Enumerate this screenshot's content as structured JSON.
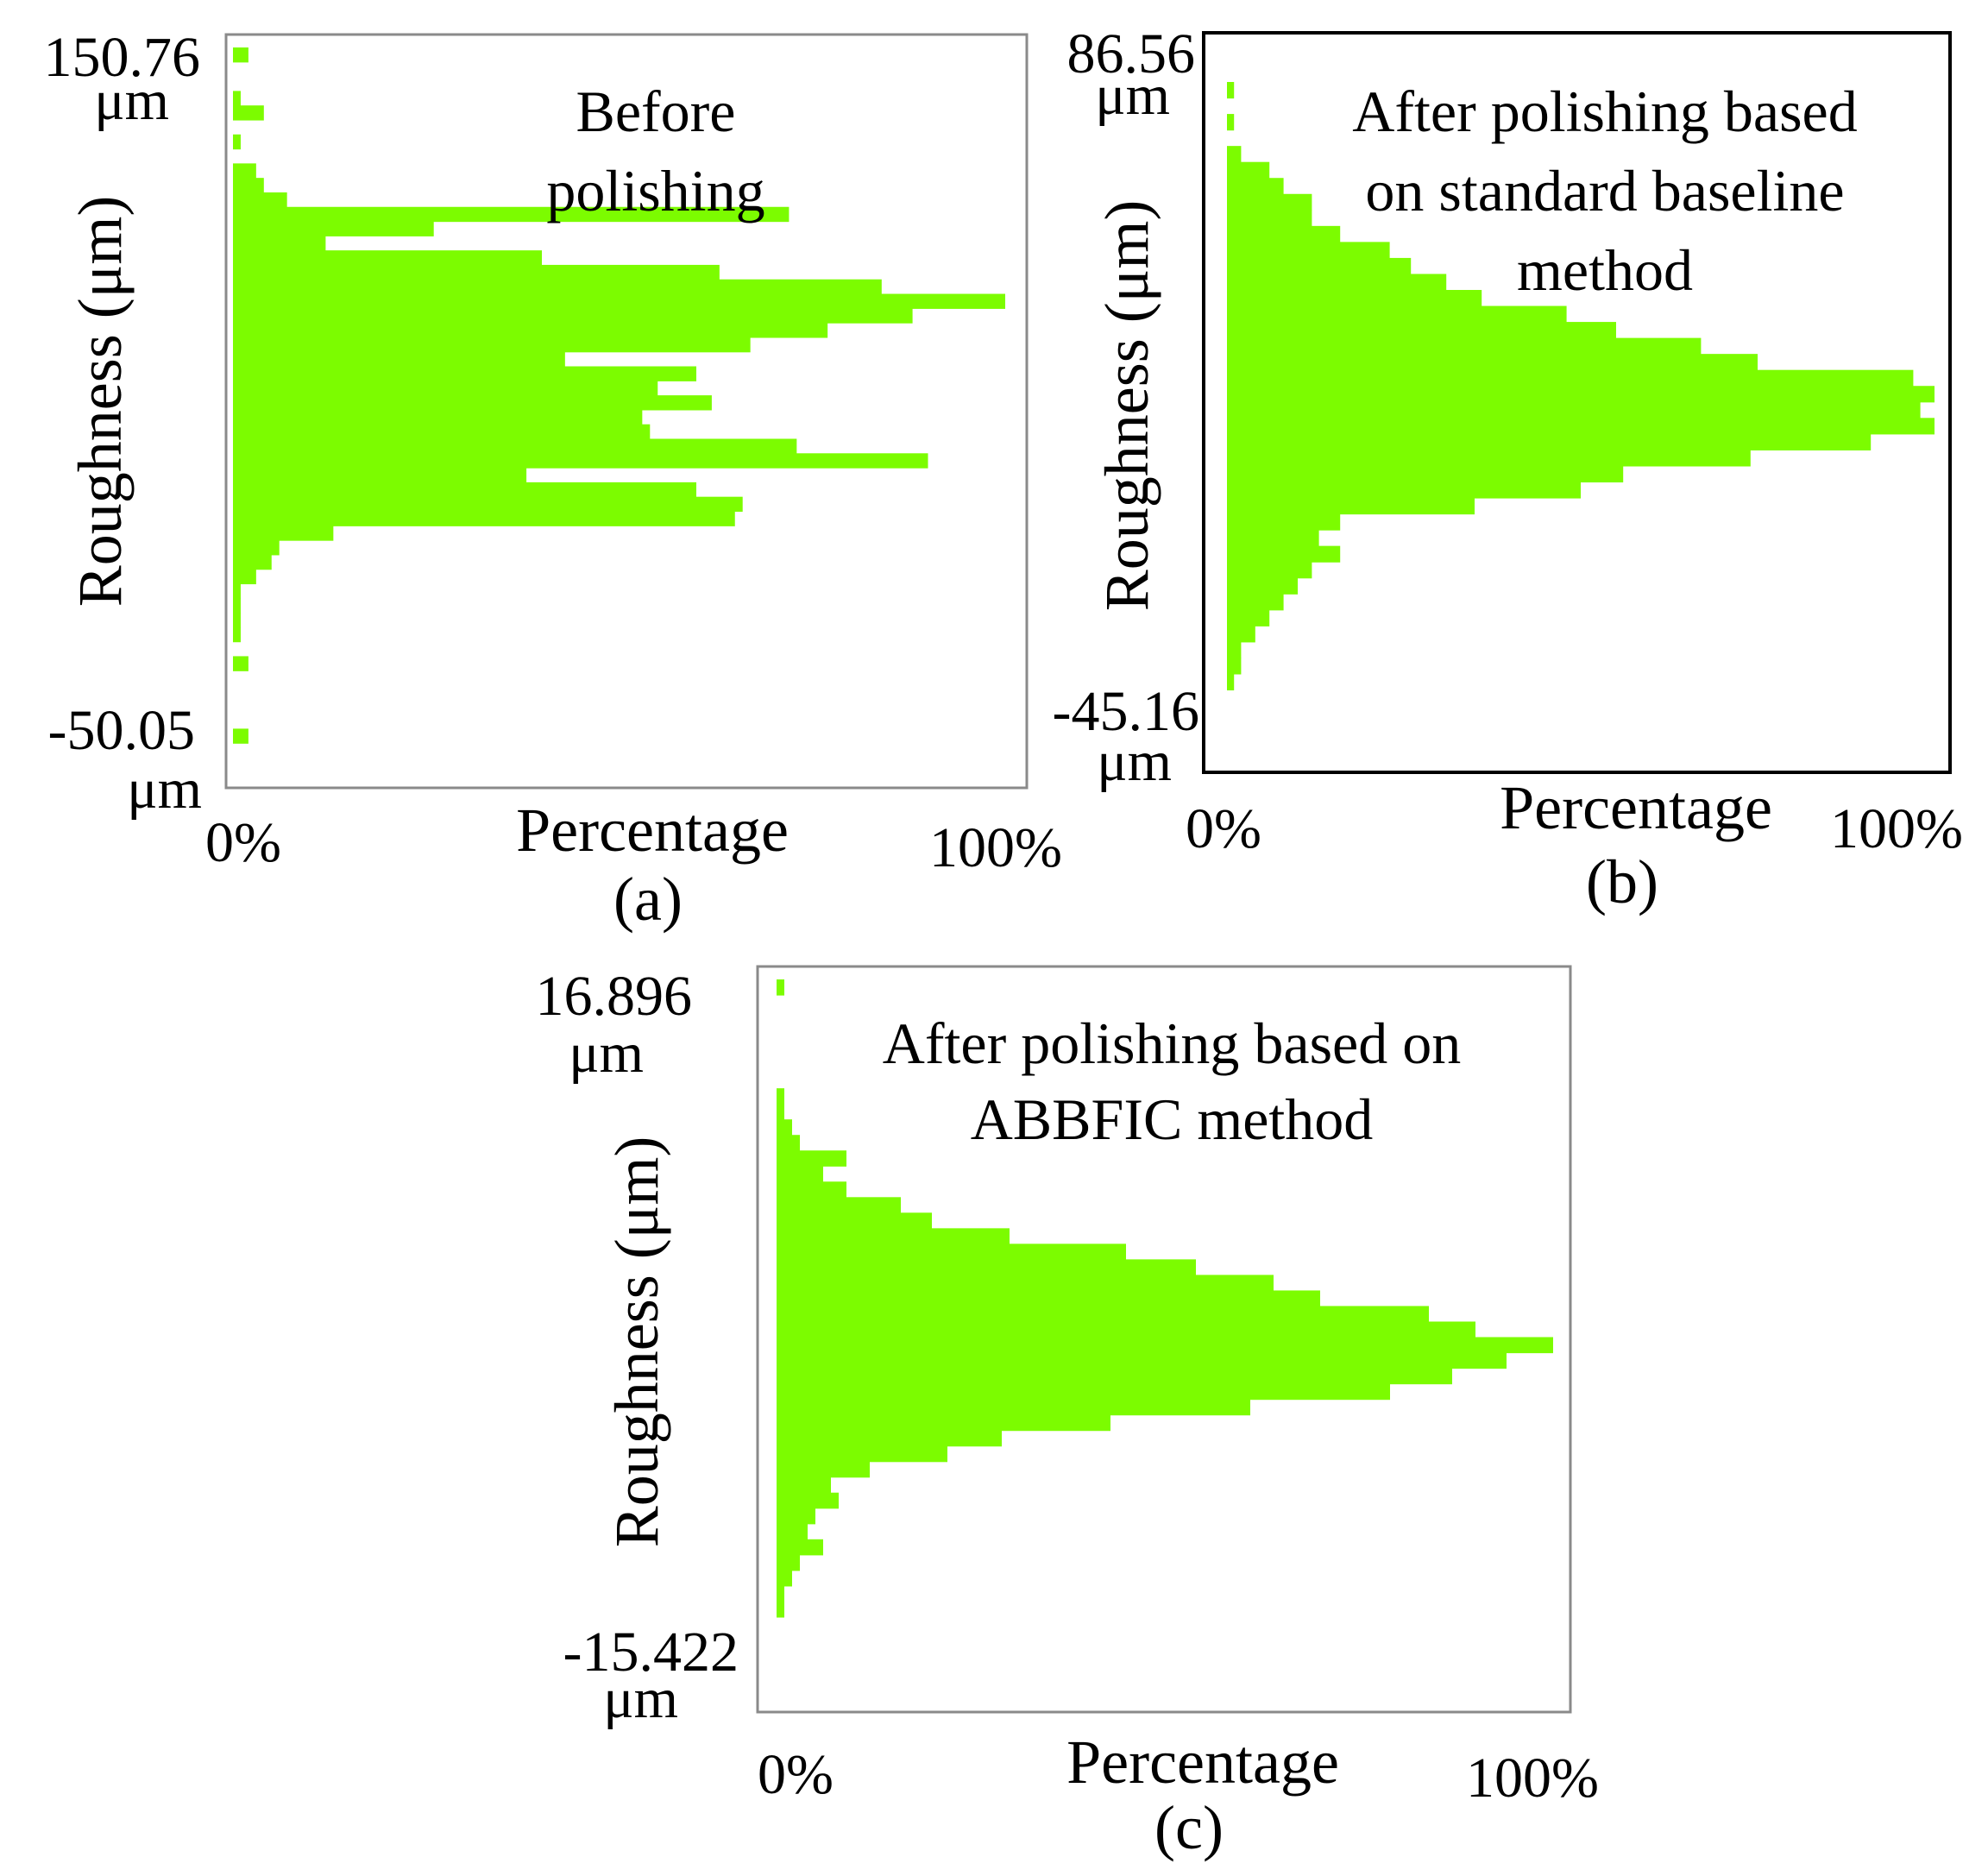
{
  "chart_data": [
    {
      "type": "bar",
      "orientation": "horizontal",
      "panel": "a",
      "caption": "(a)",
      "annotation": [
        "Before",
        "polishing"
      ],
      "ylabel": "Roughness (μm)",
      "xlabel": "Percentage",
      "y_top": [
        "150.76",
        "μm"
      ],
      "y_bottom": [
        "-50.05",
        "μm"
      ],
      "x_min": "0%",
      "x_max": "100%",
      "bar_color": "#7cfc00",
      "frame_color": "#8a8a8a",
      "values": [
        2,
        0,
        0,
        1,
        4,
        0,
        1,
        0,
        3,
        4,
        7,
        72,
        26,
        12,
        40,
        63,
        84,
        100,
        88,
        77,
        67,
        43,
        60,
        55,
        62,
        53,
        54,
        73,
        90,
        38,
        60,
        66,
        65,
        13,
        6,
        5,
        3,
        1,
        1,
        1,
        1,
        0,
        2,
        0,
        0,
        0,
        0,
        2,
        0
      ]
    },
    {
      "type": "bar",
      "orientation": "horizontal",
      "panel": "b",
      "caption": "(b)",
      "annotation": [
        "After polishing based",
        "on standard baseline",
        "method"
      ],
      "ylabel": "Roughness (μm)",
      "xlabel": "Percentage",
      "y_top": [
        "86.56",
        "μm"
      ],
      "y_bottom": [
        "-45.16",
        "μm"
      ],
      "x_min": "0%",
      "x_max": "100%",
      "bar_color": "#7cfc00",
      "frame_color": "#000000",
      "values": [
        1,
        0,
        1,
        0,
        2,
        6,
        8,
        12,
        12,
        16,
        23,
        26,
        31,
        36,
        48,
        55,
        67,
        75,
        97,
        100,
        98,
        100,
        91,
        74,
        56,
        50,
        35,
        16,
        13,
        16,
        12,
        10,
        8,
        6,
        4,
        2,
        2,
        1,
        0
      ]
    },
    {
      "type": "bar",
      "orientation": "horizontal",
      "panel": "c",
      "caption": "(c)",
      "annotation": [
        "After polishing based on",
        "ABBFIC method"
      ],
      "ylabel": "Roughness (μm)",
      "xlabel": "Percentage",
      "y_top": [
        "16.896",
        "μm"
      ],
      "y_bottom": [
        "-15.422",
        "μm"
      ],
      "x_min": "0%",
      "x_max": "100%",
      "bar_color": "#7cfc00",
      "frame_color": "#8a8a8a",
      "values": [
        1,
        0,
        0,
        0,
        0,
        0,
        0,
        1,
        1,
        2,
        3,
        9,
        6,
        9,
        16,
        20,
        30,
        45,
        54,
        64,
        70,
        84,
        90,
        100,
        94,
        87,
        79,
        61,
        43,
        29,
        22,
        12,
        7,
        8,
        5,
        4,
        6,
        3,
        2,
        1,
        1,
        0,
        0,
        0,
        0
      ]
    }
  ]
}
